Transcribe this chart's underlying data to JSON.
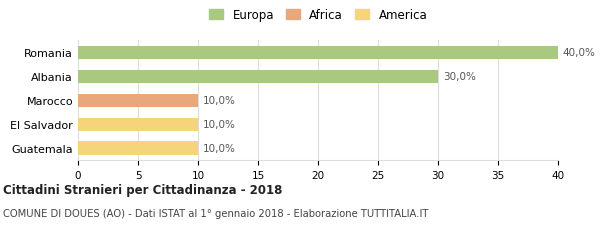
{
  "categories": [
    "Romania",
    "Albania",
    "Marocco",
    "El Salvador",
    "Guatemala"
  ],
  "values": [
    40.0,
    30.0,
    10.0,
    10.0,
    10.0
  ],
  "bar_colors": [
    "#a8c97f",
    "#a8c97f",
    "#e8a87c",
    "#f5d47a",
    "#f5d47a"
  ],
  "labels": [
    "40,0%",
    "30,0%",
    "10,0%",
    "10,0%",
    "10,0%"
  ],
  "legend_items": [
    {
      "label": "Europa",
      "color": "#a8c97f"
    },
    {
      "label": "Africa",
      "color": "#e8a87c"
    },
    {
      "label": "America",
      "color": "#f5d47a"
    }
  ],
  "xlim": [
    0,
    40
  ],
  "xticks": [
    0,
    5,
    10,
    15,
    20,
    25,
    30,
    35,
    40
  ],
  "title": "Cittadini Stranieri per Cittadinanza - 2018",
  "subtitle": "COMUNE DI DOUES (AO) - Dati ISTAT al 1° gennaio 2018 - Elaborazione TUTTITALIA.IT",
  "title_fontsize": 8.5,
  "subtitle_fontsize": 7.2,
  "bar_height": 0.55,
  "label_fontsize": 7.5,
  "tick_fontsize": 7.5,
  "ytick_fontsize": 8,
  "background_color": "#ffffff",
  "grid_color": "#dddddd"
}
